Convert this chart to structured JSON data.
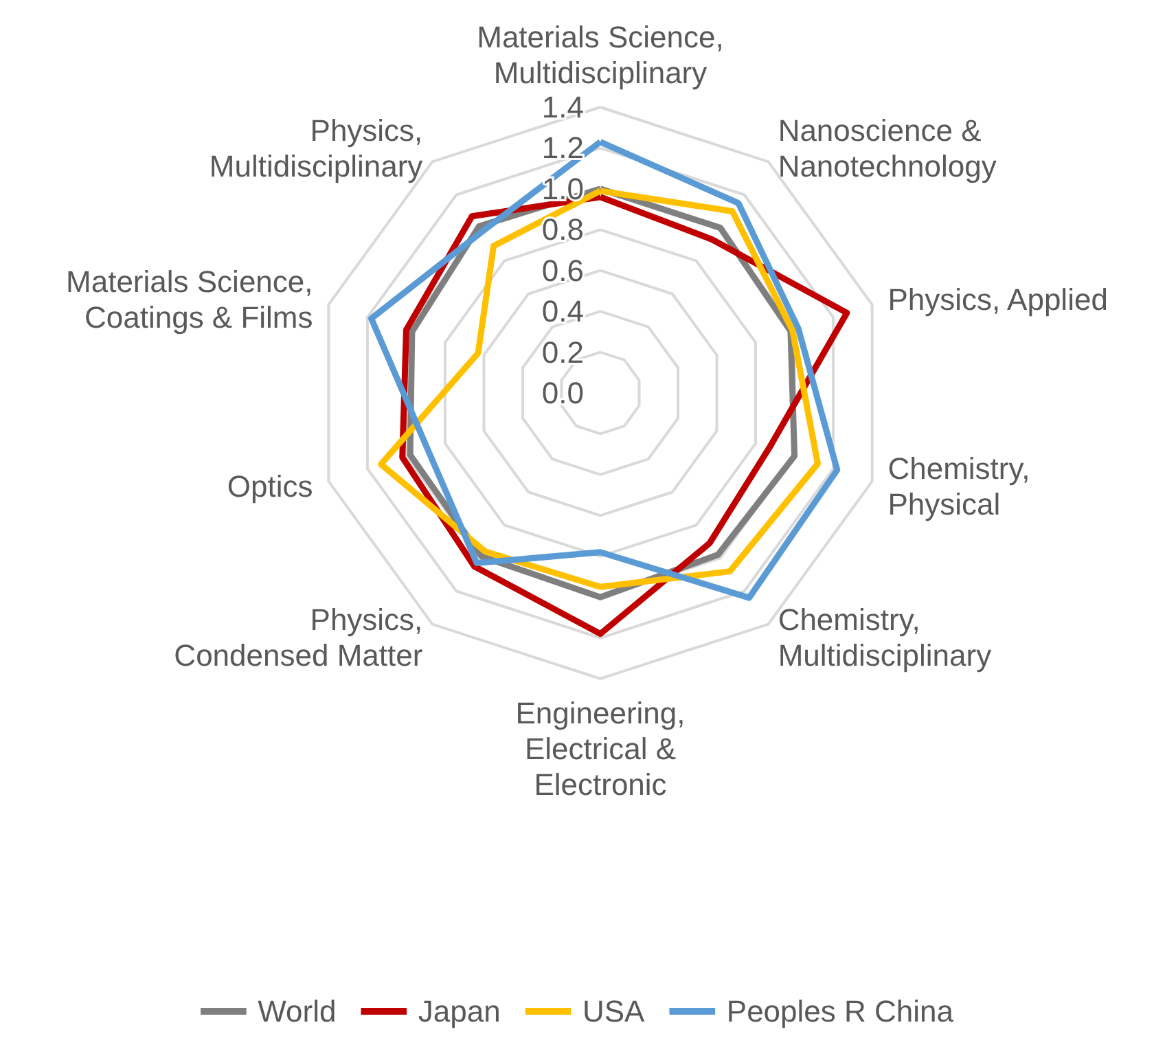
{
  "chart_data": {
    "type": "radar",
    "categories": [
      "Materials Science,\nMultidisciplinary",
      "Nanoscience &\nNanotechnology",
      "Physics, Applied",
      "Chemistry,\nPhysical",
      "Chemistry,\nMultidisciplinary",
      "Engineering,\nElectrical &\nElectronic",
      "Physics,\nCondensed Matter",
      "Optics",
      "Materials Science,\nCoatings & Films",
      "Physics,\nMultidisciplinary"
    ],
    "series": [
      {
        "name": "World",
        "color": "#7f7f7f",
        "values": [
          1.0,
          1.0,
          0.98,
          1.0,
          0.98,
          1.0,
          0.99,
          0.98,
          0.97,
          1.01
        ]
      },
      {
        "name": "Japan",
        "color": "#c00000",
        "values": [
          0.96,
          0.93,
          1.27,
          0.87,
          0.91,
          1.18,
          1.05,
          1.02,
          1.0,
          1.07
        ]
      },
      {
        "name": "USA",
        "color": "#ffc000",
        "values": [
          0.99,
          1.1,
          0.99,
          1.12,
          1.08,
          0.95,
          0.96,
          1.13,
          0.63,
          0.89
        ]
      },
      {
        "name": "Peoples R China",
        "color": "#5b9bd5",
        "values": [
          1.23,
          1.15,
          1.02,
          1.22,
          1.24,
          0.78,
          1.03,
          0.89,
          1.18,
          0.98
        ]
      }
    ],
    "ylim": [
      0,
      1.4
    ],
    "yticks": [
      {
        "value": 0,
        "label": "0.0"
      },
      {
        "value": 0.2,
        "label": "0.2"
      },
      {
        "value": 0.4,
        "label": "0.4"
      },
      {
        "value": 0.6,
        "label": "0.6"
      },
      {
        "value": 0.8,
        "label": "0.8"
      },
      {
        "value": 1.0,
        "label": "1.0"
      },
      {
        "value": 1.2,
        "label": "1.2"
      },
      {
        "value": 1.4,
        "label": "1.4"
      }
    ],
    "grid": true,
    "legend": "bottom",
    "marker": "none",
    "line_style": "solid"
  }
}
